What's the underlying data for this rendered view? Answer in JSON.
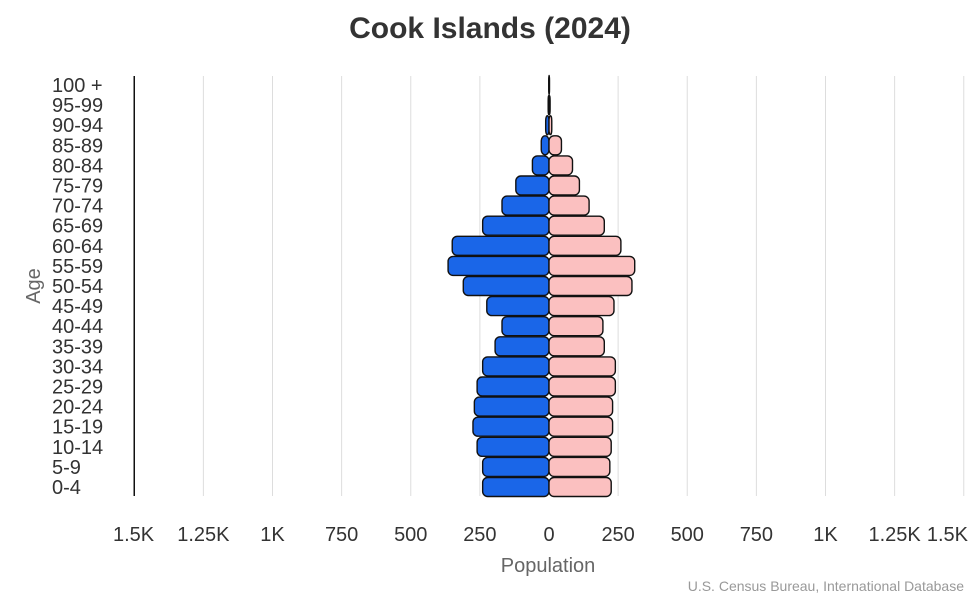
{
  "title": "Cook Islands (2024)",
  "source": "U.S. Census Bureau, International Database",
  "colors": {
    "male": "#1a66e8",
    "female": "#fbc0c0",
    "outline": "#111111",
    "grid": "#dddddd",
    "text": "#333333",
    "axis_title": "#666666"
  },
  "chart_data": {
    "type": "bar",
    "orientation": "horizontal",
    "subtype": "population-pyramid",
    "title": "Cook Islands (2024)",
    "xlabel": "Population",
    "ylabel": "Age",
    "xlim": [
      -1500,
      1500
    ],
    "x_tick_labels": [
      "1.5K",
      "1.25K",
      "1K",
      "750",
      "500",
      "250",
      "0",
      "250",
      "500",
      "750",
      "1K",
      "1.25K",
      "1.5K"
    ],
    "categories": [
      "0-4",
      "5-9",
      "10-14",
      "15-19",
      "20-24",
      "25-29",
      "30-34",
      "35-39",
      "40-44",
      "45-49",
      "50-54",
      "55-59",
      "60-64",
      "65-69",
      "70-74",
      "75-79",
      "80-84",
      "85-89",
      "90-94",
      "95-99",
      "100 +"
    ],
    "series": [
      {
        "side": "left",
        "values": [
          240,
          240,
          260,
          275,
          270,
          260,
          240,
          195,
          170,
          225,
          310,
          365,
          350,
          240,
          170,
          120,
          60,
          28,
          12,
          3,
          1
        ]
      },
      {
        "side": "right",
        "values": [
          225,
          220,
          225,
          230,
          230,
          240,
          240,
          200,
          195,
          235,
          300,
          310,
          260,
          200,
          145,
          110,
          85,
          45,
          10,
          4,
          1
        ]
      }
    ],
    "grid": true,
    "legend": "none"
  }
}
